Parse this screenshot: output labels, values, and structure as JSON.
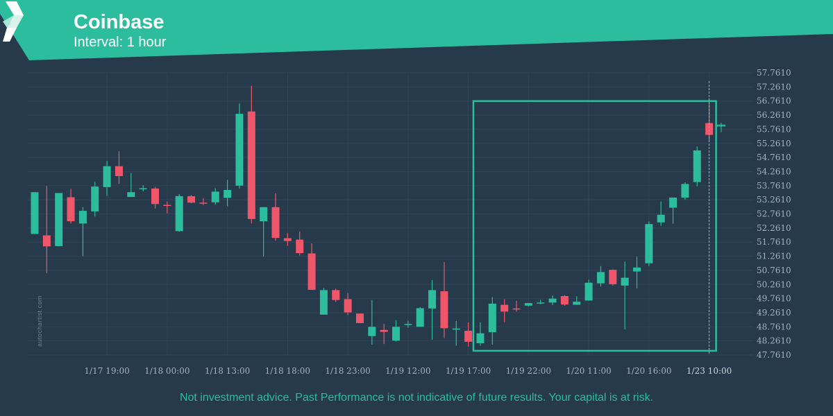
{
  "header": {
    "title": "Coinbase",
    "interval": "Interval: 1 hour"
  },
  "watermark": "autochartist.com",
  "disclaimer": "Not investment advice. Past Performance is not indicative of future results. Your capital is at risk.",
  "colors": {
    "background": "#263a4c",
    "banner": "#2bbd9d",
    "up": "#2bbd9d",
    "down": "#f0566a",
    "grid": "#2f4457",
    "axis_text": "#a3b3c1",
    "highlight": "#2bbd9d"
  },
  "chart_data": {
    "type": "candlestick",
    "y_ticks": [
      "57.7610",
      "57.2610",
      "56.7610",
      "56.2610",
      "55.7610",
      "55.2610",
      "54.7610",
      "54.2610",
      "53.7610",
      "53.2610",
      "52.7610",
      "52.2610",
      "51.7610",
      "51.2610",
      "50.7610",
      "50.2610",
      "49.7610",
      "49.2610",
      "48.7610",
      "48.2610",
      "47.7610"
    ],
    "ylim": [
      47.761,
      57.761
    ],
    "x_ticks": [
      "1/17 19:00",
      "1/18 00:00",
      "1/18 13:00",
      "1/18 18:00",
      "1/18 23:00",
      "1/19 12:00",
      "1/19 17:00",
      "1/19 22:00",
      "1/20 11:00",
      "1/20 16:00",
      "1/23 10:00"
    ],
    "x_tick_candle_index": [
      6,
      11,
      16,
      21,
      26,
      31,
      36,
      41,
      46,
      51,
      56
    ],
    "highlighted_x_tick": "1/23 10:00",
    "candles": [
      {
        "o": 52.05,
        "h": 53.53,
        "l": 52.05,
        "c": 53.53
      },
      {
        "o": 52.0,
        "h": 53.75,
        "l": 50.66,
        "c": 51.61
      },
      {
        "o": 51.62,
        "h": 53.5,
        "l": 51.61,
        "c": 53.5
      },
      {
        "o": 53.35,
        "h": 53.65,
        "l": 52.42,
        "c": 52.5
      },
      {
        "o": 52.42,
        "h": 53.0,
        "l": 51.26,
        "c": 52.87
      },
      {
        "o": 52.85,
        "h": 53.9,
        "l": 52.67,
        "c": 53.73
      },
      {
        "o": 53.71,
        "h": 54.64,
        "l": 53.4,
        "c": 54.45
      },
      {
        "o": 54.45,
        "h": 54.98,
        "l": 53.82,
        "c": 54.1
      },
      {
        "o": 53.36,
        "h": 54.21,
        "l": 53.36,
        "c": 53.53
      },
      {
        "o": 53.64,
        "h": 53.78,
        "l": 53.56,
        "c": 53.67
      },
      {
        "o": 53.66,
        "h": 53.72,
        "l": 52.95,
        "c": 53.11
      },
      {
        "o": 53.08,
        "h": 53.2,
        "l": 52.78,
        "c": 53.05
      },
      {
        "o": 52.15,
        "h": 53.46,
        "l": 52.13,
        "c": 53.39
      },
      {
        "o": 53.39,
        "h": 53.43,
        "l": 53.14,
        "c": 53.16
      },
      {
        "o": 53.16,
        "h": 53.32,
        "l": 53.07,
        "c": 53.14
      },
      {
        "o": 53.17,
        "h": 53.67,
        "l": 53.09,
        "c": 53.55
      },
      {
        "o": 53.33,
        "h": 53.97,
        "l": 53.03,
        "c": 53.61
      },
      {
        "o": 53.76,
        "h": 56.67,
        "l": 53.66,
        "c": 56.31
      },
      {
        "o": 56.39,
        "h": 57.3,
        "l": 52.42,
        "c": 52.58
      },
      {
        "o": 52.5,
        "h": 53.0,
        "l": 51.25,
        "c": 53.0
      },
      {
        "o": 53.0,
        "h": 53.49,
        "l": 51.81,
        "c": 51.91
      },
      {
        "o": 51.9,
        "h": 52.08,
        "l": 51.63,
        "c": 51.8
      },
      {
        "o": 51.85,
        "h": 52.14,
        "l": 51.29,
        "c": 51.37
      },
      {
        "o": 51.36,
        "h": 51.72,
        "l": 50.07,
        "c": 50.07
      },
      {
        "o": 49.19,
        "h": 50.13,
        "l": 49.19,
        "c": 50.06
      },
      {
        "o": 50.06,
        "h": 50.11,
        "l": 49.64,
        "c": 49.71
      },
      {
        "o": 49.74,
        "h": 49.96,
        "l": 49.18,
        "c": 49.27
      },
      {
        "o": 49.23,
        "h": 49.23,
        "l": 48.89,
        "c": 48.89
      },
      {
        "o": 48.43,
        "h": 49.71,
        "l": 48.13,
        "c": 48.76
      },
      {
        "o": 48.65,
        "h": 48.87,
        "l": 48.15,
        "c": 48.58
      },
      {
        "o": 48.27,
        "h": 49.0,
        "l": 48.24,
        "c": 48.76
      },
      {
        "o": 48.83,
        "h": 48.98,
        "l": 48.73,
        "c": 48.86
      },
      {
        "o": 48.76,
        "h": 49.46,
        "l": 48.76,
        "c": 49.42
      },
      {
        "o": 49.41,
        "h": 50.42,
        "l": 48.3,
        "c": 50.06
      },
      {
        "o": 50.02,
        "h": 51.05,
        "l": 48.36,
        "c": 48.71
      },
      {
        "o": 48.66,
        "h": 48.97,
        "l": 48.09,
        "c": 48.7
      },
      {
        "o": 48.62,
        "h": 48.92,
        "l": 48.06,
        "c": 48.23
      },
      {
        "o": 48.18,
        "h": 48.92,
        "l": 48.09,
        "c": 48.53
      },
      {
        "o": 48.57,
        "h": 49.81,
        "l": 48.13,
        "c": 49.58
      },
      {
        "o": 49.54,
        "h": 49.74,
        "l": 48.92,
        "c": 49.3
      },
      {
        "o": 49.41,
        "h": 49.68,
        "l": 49.3,
        "c": 49.4
      },
      {
        "o": 49.51,
        "h": 49.6,
        "l": 49.48,
        "c": 49.6
      },
      {
        "o": 49.59,
        "h": 49.72,
        "l": 49.56,
        "c": 49.62
      },
      {
        "o": 49.62,
        "h": 49.87,
        "l": 49.53,
        "c": 49.76
      },
      {
        "o": 49.85,
        "h": 49.88,
        "l": 49.51,
        "c": 49.55
      },
      {
        "o": 49.54,
        "h": 49.84,
        "l": 49.54,
        "c": 49.65
      },
      {
        "o": 49.69,
        "h": 50.43,
        "l": 49.69,
        "c": 50.32
      },
      {
        "o": 50.3,
        "h": 50.91,
        "l": 50.19,
        "c": 50.7
      },
      {
        "o": 50.78,
        "h": 50.79,
        "l": 50.22,
        "c": 50.27
      },
      {
        "o": 50.22,
        "h": 51.07,
        "l": 48.67,
        "c": 50.5
      },
      {
        "o": 50.72,
        "h": 51.24,
        "l": 50.12,
        "c": 50.86
      },
      {
        "o": 51.01,
        "h": 52.49,
        "l": 50.91,
        "c": 52.4
      },
      {
        "o": 52.46,
        "h": 53.2,
        "l": 52.34,
        "c": 52.73
      },
      {
        "o": 52.98,
        "h": 53.3,
        "l": 52.41,
        "c": 53.34
      },
      {
        "o": 53.34,
        "h": 53.88,
        "l": 53.26,
        "c": 53.82
      },
      {
        "o": 53.89,
        "h": 55.15,
        "l": 53.74,
        "c": 55.01
      },
      {
        "o": 55.98,
        "h": 56.71,
        "l": 55.36,
        "c": 55.56
      },
      {
        "o": 55.9,
        "h": 55.99,
        "l": 55.66,
        "c": 55.91
      }
    ],
    "pattern_box": {
      "start_index": 37,
      "end_index": 56,
      "y_top": 56.76,
      "y_bottom": 47.91
    }
  }
}
